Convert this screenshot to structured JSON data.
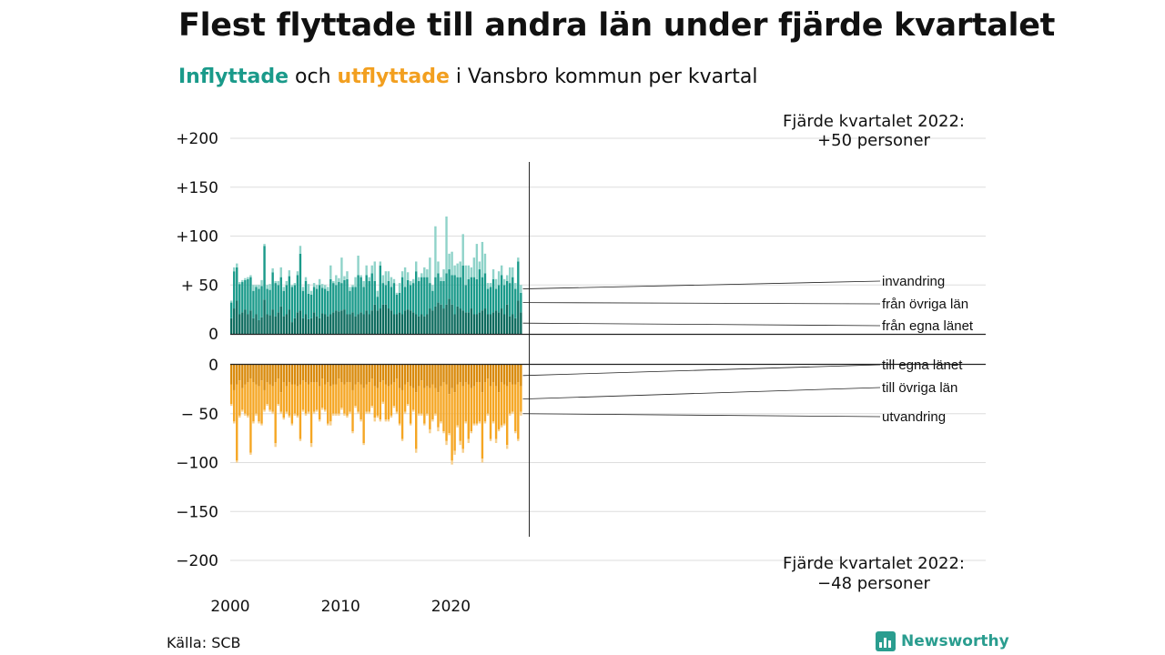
{
  "title": "Flest flyttade till andra län under fjärde kvartalet",
  "subtitle": {
    "in_word": "Inflyttade",
    "mid": " och ",
    "out_word": "utflyttade",
    "rest": " i Vansbro kommun per kvartal"
  },
  "source": "Källa: SCB",
  "brand": "Newsworthy",
  "colors": {
    "in_own": "#0d6b5e",
    "in_other": "#1a9a8a",
    "in_immig": "#8fd3c9",
    "out_own": "#d98a0b",
    "out_other": "#f5a623",
    "out_emig": "#f7d08f",
    "grid": "#dddddd"
  },
  "chart_data": {
    "type": "bar",
    "start_year": 2000,
    "quarters_per_year": 4,
    "top_panel": {
      "y_ticks": [
        0,
        50,
        100,
        150,
        200
      ],
      "y_tick_labels": [
        "0",
        "+ 50",
        "+100",
        "+150",
        "+200"
      ],
      "ylim": [
        0,
        200
      ],
      "series_names": [
        "från egna länet",
        "från övriga län",
        "invandring"
      ],
      "annotation_line1": "Fjärde kvartalet 2022:",
      "annotation_line2": "+50 personer",
      "own": [
        16,
        26,
        34,
        20,
        22,
        25,
        20,
        24,
        16,
        20,
        14,
        17,
        35,
        20,
        19,
        25,
        18,
        22,
        28,
        18,
        20,
        25,
        12,
        16,
        22,
        24,
        16,
        20,
        15,
        16,
        22,
        18,
        16,
        21,
        20,
        18,
        20,
        22,
        24,
        23,
        24,
        25,
        20,
        20,
        22,
        18,
        20,
        22,
        20,
        24,
        20,
        24,
        30,
        24,
        26,
        30,
        30,
        26,
        24,
        20,
        20,
        22,
        20,
        24,
        25,
        24,
        22,
        20,
        18,
        20,
        18,
        20,
        26,
        24,
        28,
        32,
        30,
        26,
        30,
        36,
        30,
        20,
        28,
        26,
        24,
        22,
        22,
        26,
        20,
        20,
        22,
        24,
        26,
        20,
        20,
        22,
        24,
        22,
        26,
        20,
        30,
        18,
        20,
        16,
        34,
        22
      ],
      "other": [
        16,
        38,
        34,
        31,
        31,
        30,
        36,
        34,
        28,
        28,
        32,
        32,
        55,
        26,
        26,
        38,
        34,
        28,
        30,
        26,
        30,
        34,
        36,
        34,
        38,
        58,
        28,
        34,
        26,
        24,
        26,
        28,
        34,
        26,
        26,
        26,
        36,
        30,
        26,
        30,
        28,
        30,
        36,
        24,
        26,
        30,
        40,
        36,
        28,
        36,
        34,
        38,
        24,
        14,
        44,
        22,
        20,
        28,
        24,
        32,
        20,
        20,
        38,
        24,
        30,
        26,
        30,
        44,
        36,
        38,
        40,
        38,
        26,
        20,
        30,
        30,
        24,
        28,
        32,
        30,
        30,
        40,
        30,
        32,
        46,
        28,
        34,
        32,
        38,
        36,
        44,
        34,
        36,
        26,
        28,
        34,
        22,
        28,
        34,
        30,
        24,
        34,
        38,
        30,
        40,
        20
      ],
      "immig": [
        2,
        4,
        4,
        2,
        2,
        2,
        2,
        2,
        6,
        2,
        4,
        6,
        2,
        4,
        6,
        4,
        2,
        4,
        10,
        4,
        4,
        6,
        2,
        2,
        4,
        8,
        4,
        4,
        10,
        4,
        4,
        4,
        6,
        4,
        4,
        4,
        14,
        2,
        10,
        4,
        26,
        4,
        8,
        4,
        2,
        10,
        20,
        2,
        6,
        10,
        4,
        8,
        20,
        6,
        4,
        8,
        14,
        10,
        10,
        4,
        2,
        10,
        6,
        20,
        8,
        4,
        4,
        10,
        4,
        4,
        10,
        8,
        26,
        6,
        52,
        12,
        4,
        12,
        58,
        16,
        24,
        10,
        14,
        16,
        32,
        20,
        14,
        10,
        20,
        36,
        8,
        36,
        20,
        6,
        4,
        10,
        10,
        14,
        10,
        6,
        6,
        16,
        10,
        6,
        4,
        8
      ]
    },
    "bottom_panel": {
      "y_ticks": [
        0,
        -50,
        -100,
        -150,
        -200
      ],
      "y_tick_labels": [
        "0",
        "− 50",
        "−100",
        "−150",
        "−200"
      ],
      "ylim": [
        -200,
        0
      ],
      "series_names": [
        "till egna länet",
        "till övriga län",
        "utvandring"
      ],
      "annotation_line1": "Fjärde kvartalet 2022:",
      "annotation_line2": "−48 personer",
      "own": [
        20,
        26,
        20,
        16,
        24,
        20,
        18,
        14,
        18,
        20,
        22,
        16,
        26,
        18,
        20,
        22,
        18,
        14,
        28,
        18,
        22,
        18,
        20,
        20,
        22,
        20,
        16,
        18,
        20,
        18,
        18,
        18,
        22,
        14,
        20,
        18,
        22,
        20,
        20,
        14,
        18,
        20,
        18,
        18,
        26,
        20,
        18,
        20,
        24,
        20,
        18,
        14,
        22,
        24,
        18,
        16,
        20,
        22,
        20,
        18,
        14,
        24,
        26,
        20,
        18,
        22,
        24,
        28,
        22,
        16,
        24,
        22,
        24,
        20,
        24,
        28,
        22,
        18,
        20,
        30,
        24,
        28,
        20,
        18,
        22,
        18,
        20,
        24,
        22,
        18,
        18,
        28,
        18,
        14,
        22,
        18,
        22,
        28,
        18,
        20,
        22,
        18,
        20,
        20,
        18,
        22
      ],
      "other": [
        20,
        32,
        78,
        36,
        22,
        30,
        34,
        76,
        40,
        30,
        36,
        44,
        20,
        22,
        26,
        26,
        62,
        26,
        20,
        36,
        26,
        34,
        40,
        30,
        30,
        56,
        30,
        32,
        28,
        62,
        30,
        28,
        34,
        30,
        26,
        42,
        36,
        30,
        30,
        36,
        26,
        30,
        34,
        30,
        42,
        22,
        30,
        36,
        56,
        28,
        30,
        28,
        32,
        28,
        38,
        22,
        36,
        34,
        32,
        24,
        34,
        36,
        50,
        28,
        22,
        38,
        22,
        58,
        28,
        34,
        36,
        28,
        42,
        36,
        26,
        36,
        36,
        50,
        58,
        40,
        74,
        60,
        42,
        60,
        64,
        40,
        56,
        44,
        38,
        42,
        40,
        68,
        40,
        36,
        54,
        40,
        54,
        38,
        44,
        40,
        60,
        32,
        28,
        48,
        58,
        26
      ],
      "emig": [
        2,
        2,
        2,
        2,
        2,
        2,
        2,
        2,
        2,
        2,
        2,
        2,
        2,
        2,
        2,
        2,
        4,
        2,
        2,
        2,
        2,
        2,
        2,
        2,
        2,
        2,
        2,
        2,
        2,
        4,
        2,
        2,
        2,
        2,
        2,
        2,
        4,
        2,
        2,
        2,
        2,
        2,
        2,
        2,
        2,
        2,
        2,
        2,
        2,
        2,
        2,
        2,
        4,
        2,
        2,
        2,
        2,
        2,
        2,
        2,
        2,
        2,
        2,
        2,
        2,
        2,
        2,
        4,
        2,
        2,
        2,
        2,
        4,
        2,
        2,
        4,
        2,
        2,
        4,
        2,
        4,
        4,
        2,
        4,
        4,
        2,
        4,
        2,
        2,
        2,
        2,
        4,
        2,
        2,
        2,
        2,
        4,
        2,
        2,
        2,
        4,
        2,
        2,
        2,
        2,
        4
      ]
    },
    "x_tick_labels": [
      "2000",
      "2010",
      "2020"
    ],
    "x_tick_years": [
      2000,
      2010,
      2020
    ]
  }
}
